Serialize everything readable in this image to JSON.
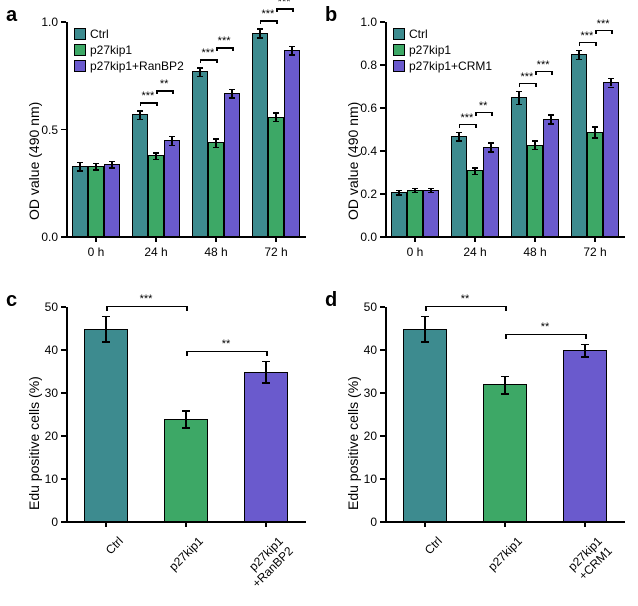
{
  "colors": {
    "ctrl": "#3d8b8f",
    "p27": "#3da866",
    "combo": "#6a5acd",
    "axis": "#000000",
    "bg": "#ffffff"
  },
  "typography": {
    "panel_label_fontsize": 20,
    "panel_label_fontweight": "bold",
    "axis_title_fontsize": 14,
    "tick_fontsize": 12,
    "legend_fontsize": 12,
    "sig_fontsize": 11
  },
  "panel_a": {
    "label": "a",
    "type": "grouped-bar",
    "ylabel": "OD value (490 nm)",
    "ylim": [
      0,
      1.0
    ],
    "yticks": [
      0,
      0.5,
      1.0
    ],
    "categories": [
      "0 h",
      "24 h",
      "48 h",
      "72 h"
    ],
    "series": [
      {
        "name": "Ctrl",
        "color": "#3d8b8f",
        "values": [
          0.33,
          0.57,
          0.77,
          0.95
        ],
        "err": [
          0.02,
          0.02,
          0.02,
          0.02
        ]
      },
      {
        "name": "p27kip1",
        "color": "#3da866",
        "values": [
          0.33,
          0.38,
          0.44,
          0.56
        ],
        "err": [
          0.015,
          0.015,
          0.02,
          0.02
        ]
      },
      {
        "name": "p27kip1+RanBP2",
        "color": "#6a5acd",
        "values": [
          0.34,
          0.45,
          0.67,
          0.87
        ],
        "err": [
          0.015,
          0.02,
          0.02,
          0.02
        ]
      }
    ],
    "sig": [
      {
        "group": 1,
        "pair": [
          0,
          1
        ],
        "label": "***"
      },
      {
        "group": 1,
        "pair": [
          1,
          2
        ],
        "label": "**"
      },
      {
        "group": 2,
        "pair": [
          0,
          1
        ],
        "label": "***"
      },
      {
        "group": 2,
        "pair": [
          1,
          2
        ],
        "label": "***"
      },
      {
        "group": 3,
        "pair": [
          0,
          1
        ],
        "label": "***"
      },
      {
        "group": 3,
        "pair": [
          1,
          2
        ],
        "label": "***"
      }
    ],
    "legend_pos": "top-left",
    "bar_width": 0.27
  },
  "panel_b": {
    "label": "b",
    "type": "grouped-bar",
    "ylabel": "OD value (490 nm)",
    "ylim": [
      0,
      1.0
    ],
    "yticks": [
      0,
      0.2,
      0.4,
      0.6,
      0.8,
      1.0
    ],
    "categories": [
      "0 h",
      "24 h",
      "48 h",
      "72 h"
    ],
    "series": [
      {
        "name": "Ctrl",
        "color": "#3d8b8f",
        "values": [
          0.21,
          0.47,
          0.65,
          0.85
        ],
        "err": [
          0.01,
          0.02,
          0.03,
          0.02
        ]
      },
      {
        "name": "p27kip1",
        "color": "#3da866",
        "values": [
          0.22,
          0.31,
          0.43,
          0.49
        ],
        "err": [
          0.01,
          0.015,
          0.02,
          0.025
        ]
      },
      {
        "name": "p27kip1+CRM1",
        "color": "#6a5acd",
        "values": [
          0.22,
          0.42,
          0.55,
          0.72
        ],
        "err": [
          0.01,
          0.02,
          0.02,
          0.02
        ]
      }
    ],
    "sig": [
      {
        "group": 1,
        "pair": [
          0,
          1
        ],
        "label": "***"
      },
      {
        "group": 1,
        "pair": [
          1,
          2
        ],
        "label": "**"
      },
      {
        "group": 2,
        "pair": [
          0,
          1
        ],
        "label": "***"
      },
      {
        "group": 2,
        "pair": [
          1,
          2
        ],
        "label": "***"
      },
      {
        "group": 3,
        "pair": [
          0,
          1
        ],
        "label": "***"
      },
      {
        "group": 3,
        "pair": [
          1,
          2
        ],
        "label": "***"
      }
    ],
    "legend_pos": "top-left",
    "bar_width": 0.27
  },
  "panel_c": {
    "label": "c",
    "type": "bar",
    "ylabel": "Edu positive cells (%)",
    "ylim": [
      0,
      50
    ],
    "yticks": [
      0,
      10,
      20,
      30,
      40,
      50
    ],
    "categories": [
      "Ctrl",
      "p27kip1",
      "p27kip1\n+RanBP2"
    ],
    "values": [
      45,
      24,
      35
    ],
    "err": [
      3,
      2,
      2.5
    ],
    "colors": [
      "#3d8b8f",
      "#3da866",
      "#6a5acd"
    ],
    "sig": [
      {
        "pair": [
          0,
          1
        ],
        "label": "***"
      },
      {
        "pair": [
          1,
          2
        ],
        "label": "**"
      }
    ],
    "bar_width": 0.55
  },
  "panel_d": {
    "label": "d",
    "type": "bar",
    "ylabel": "Edu positive cells (%)",
    "ylim": [
      0,
      50
    ],
    "yticks": [
      0,
      10,
      20,
      30,
      40,
      50
    ],
    "categories": [
      "Ctrl",
      "p27kip1",
      "p27kip1\n+CRM1"
    ],
    "values": [
      45,
      32,
      40
    ],
    "err": [
      3,
      2,
      1.5
    ],
    "colors": [
      "#3d8b8f",
      "#3da866",
      "#6a5acd"
    ],
    "sig": [
      {
        "pair": [
          0,
          1
        ],
        "label": "**"
      },
      {
        "pair": [
          1,
          2
        ],
        "label": "**"
      }
    ],
    "bar_width": 0.55
  }
}
